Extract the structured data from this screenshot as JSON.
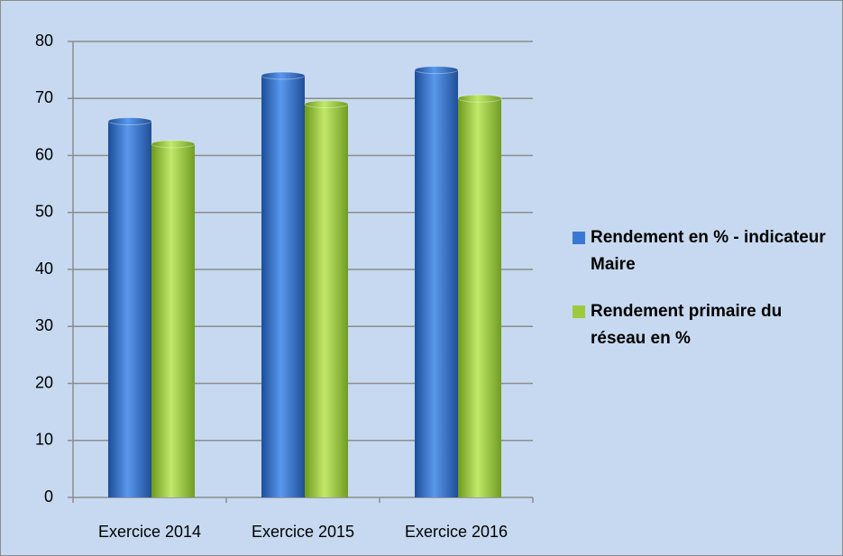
{
  "chart_data": {
    "type": "bar",
    "categories": [
      "Exercice 2014",
      "Exercice 2015",
      "Exercice 2016"
    ],
    "series": [
      {
        "name": "Rendement en % - indicateur Maire",
        "color": "#3a78d6",
        "values": [
          66,
          74,
          75
        ]
      },
      {
        "name": "Rendement primaire du réseau en %",
        "color": "#9bcb3c",
        "values": [
          62,
          69,
          70
        ]
      }
    ],
    "ylim": [
      0,
      80
    ],
    "yticks": [
      0,
      10,
      20,
      30,
      40,
      50,
      60,
      70,
      80
    ],
    "grid": true,
    "legend": "right"
  }
}
